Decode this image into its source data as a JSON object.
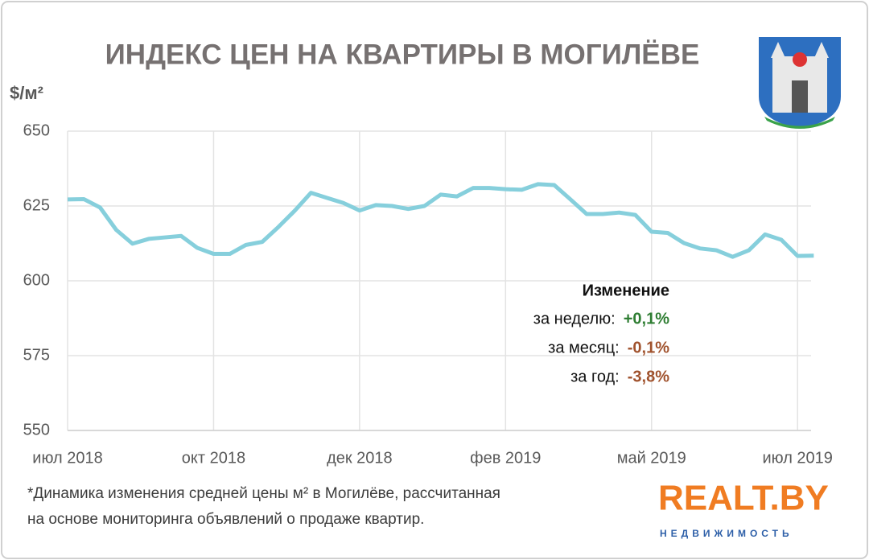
{
  "chart_data": {
    "type": "line",
    "title": "ИНДЕКС ЦЕН НА КВАРТИРЫ В МОГИЛЁВЕ",
    "y_label": "$/м²",
    "categories": [
      "июл 2018",
      null,
      null,
      null,
      null,
      null,
      null,
      null,
      null,
      "окт 2018",
      null,
      null,
      null,
      null,
      null,
      null,
      null,
      null,
      "дек 2018",
      null,
      null,
      null,
      null,
      null,
      null,
      null,
      null,
      "фев 2019",
      null,
      null,
      null,
      null,
      null,
      null,
      null,
      null,
      "май 2019",
      null,
      null,
      null,
      null,
      null,
      null,
      null,
      null,
      "июл 2019",
      null
    ],
    "series": [
      {
        "color": "#86cfdc",
        "values": [
          627.2,
          627.3,
          624.5,
          617,
          612.4,
          614,
          614.5,
          615,
          611,
          609,
          609,
          612,
          613,
          618,
          623.4,
          629.4,
          627.7,
          626,
          623.5,
          625.3,
          625,
          624,
          625,
          628.8,
          628.2,
          631,
          631,
          630.6,
          630.4,
          632.3,
          632,
          627.2,
          622.3,
          622.3,
          622.8,
          622,
          616.4,
          616,
          612.6,
          610.8,
          610.2,
          608,
          610.2,
          615.5,
          613.7,
          608.3,
          608.4
        ]
      }
    ],
    "ylim": [
      550,
      650
    ],
    "yticks": [
      550,
      575,
      600,
      625,
      650
    ],
    "grid": true,
    "change_title": "Изменение",
    "changes": [
      {
        "label": "за неделю:",
        "value": "+0,1%",
        "color": "#2e7d32"
      },
      {
        "label": "за месяц:",
        "value": "-0,1%",
        "color": "#a0522d"
      },
      {
        "label": "за год:",
        "value": "-3,8%",
        "color": "#a0522d"
      }
    ],
    "footnote": [
      "*Динамика изменения  средней цены м² в Могилёве, рассчитанная",
      "на основе мониторинга  объявлений  о продаже квартир."
    ],
    "brand": "REALT.BY",
    "brand_sub": "НЕДВИЖИМОСТЬ"
  }
}
